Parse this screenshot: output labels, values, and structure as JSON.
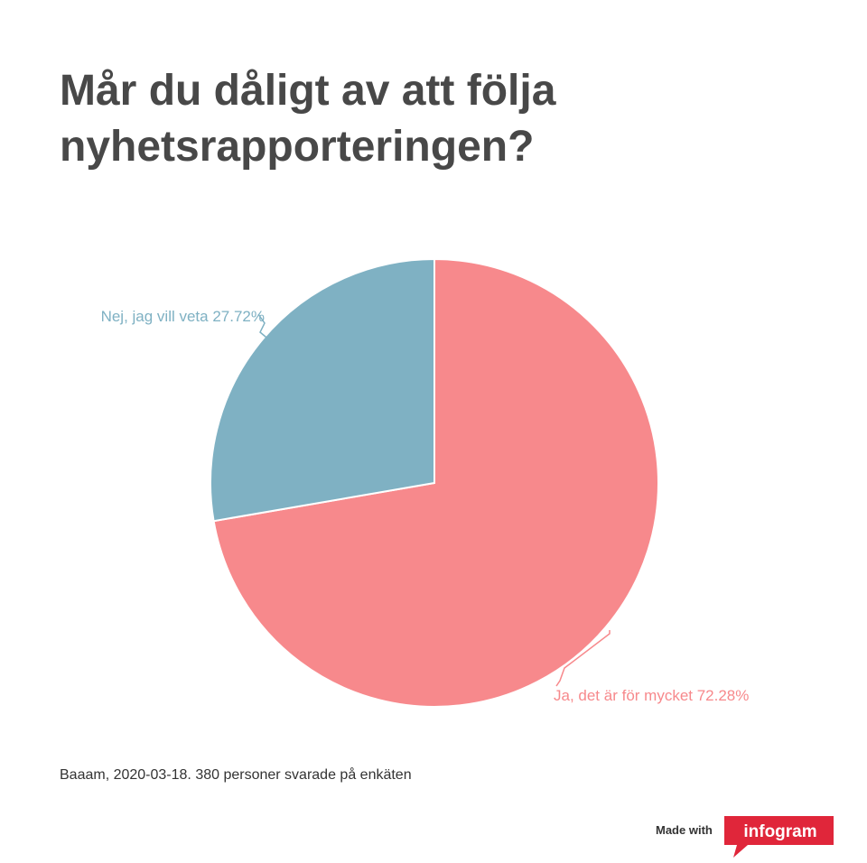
{
  "title": "Mår du dåligt av att följa nyhetsrapporteringen?",
  "chart_data": {
    "type": "pie",
    "slices": [
      {
        "label": "Ja, det är för mycket",
        "value": 72.28,
        "display": "72.28%",
        "color": "#f7898c"
      },
      {
        "label": "Nej, jag vill veta",
        "value": 27.72,
        "display": "27.72%",
        "color": "#7fb1c3"
      }
    ]
  },
  "source": "Baaam, 2020-03-18. 380 personer svarade på enkäten",
  "footer": {
    "made_with": "Made with",
    "brand": "infogram",
    "brand_color": "#e0263a"
  }
}
